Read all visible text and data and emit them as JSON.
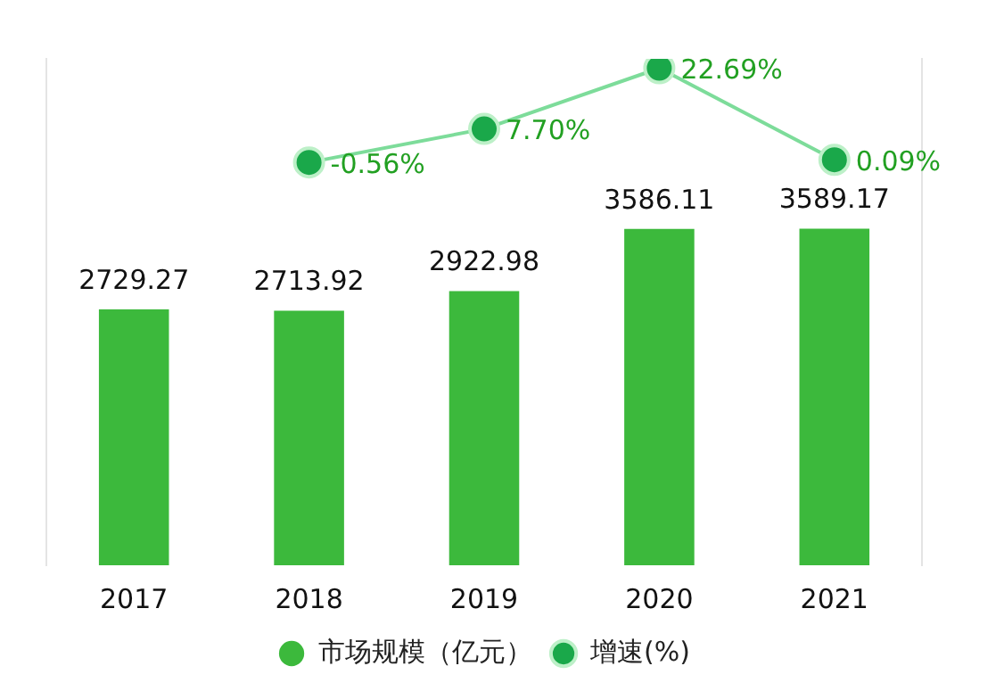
{
  "chart_data": {
    "type": "bar",
    "categories": [
      "2017",
      "2018",
      "2019",
      "2020",
      "2021"
    ],
    "series": [
      {
        "name": "市场规模（亿元）",
        "color": "#3cb93c",
        "values": [
          2729.27,
          2713.92,
          2922.98,
          3586.11,
          3589.17
        ]
      },
      {
        "name": "增速(%)",
        "type": "line",
        "axis": "y2",
        "color": "#1aa84a",
        "values": [
          null,
          -0.56,
          7.7,
          22.69,
          0.09
        ],
        "value_labels": [
          null,
          "-0.56%",
          "7.70%",
          "22.69%",
          "0.09%"
        ]
      }
    ],
    "ylim": [
      0,
      5400
    ],
    "y2lim": [
      -100,
      25
    ],
    "data_labels": true,
    "legend": "bottom",
    "grid": false,
    "marker": "circle",
    "tick_labels": "x"
  }
}
